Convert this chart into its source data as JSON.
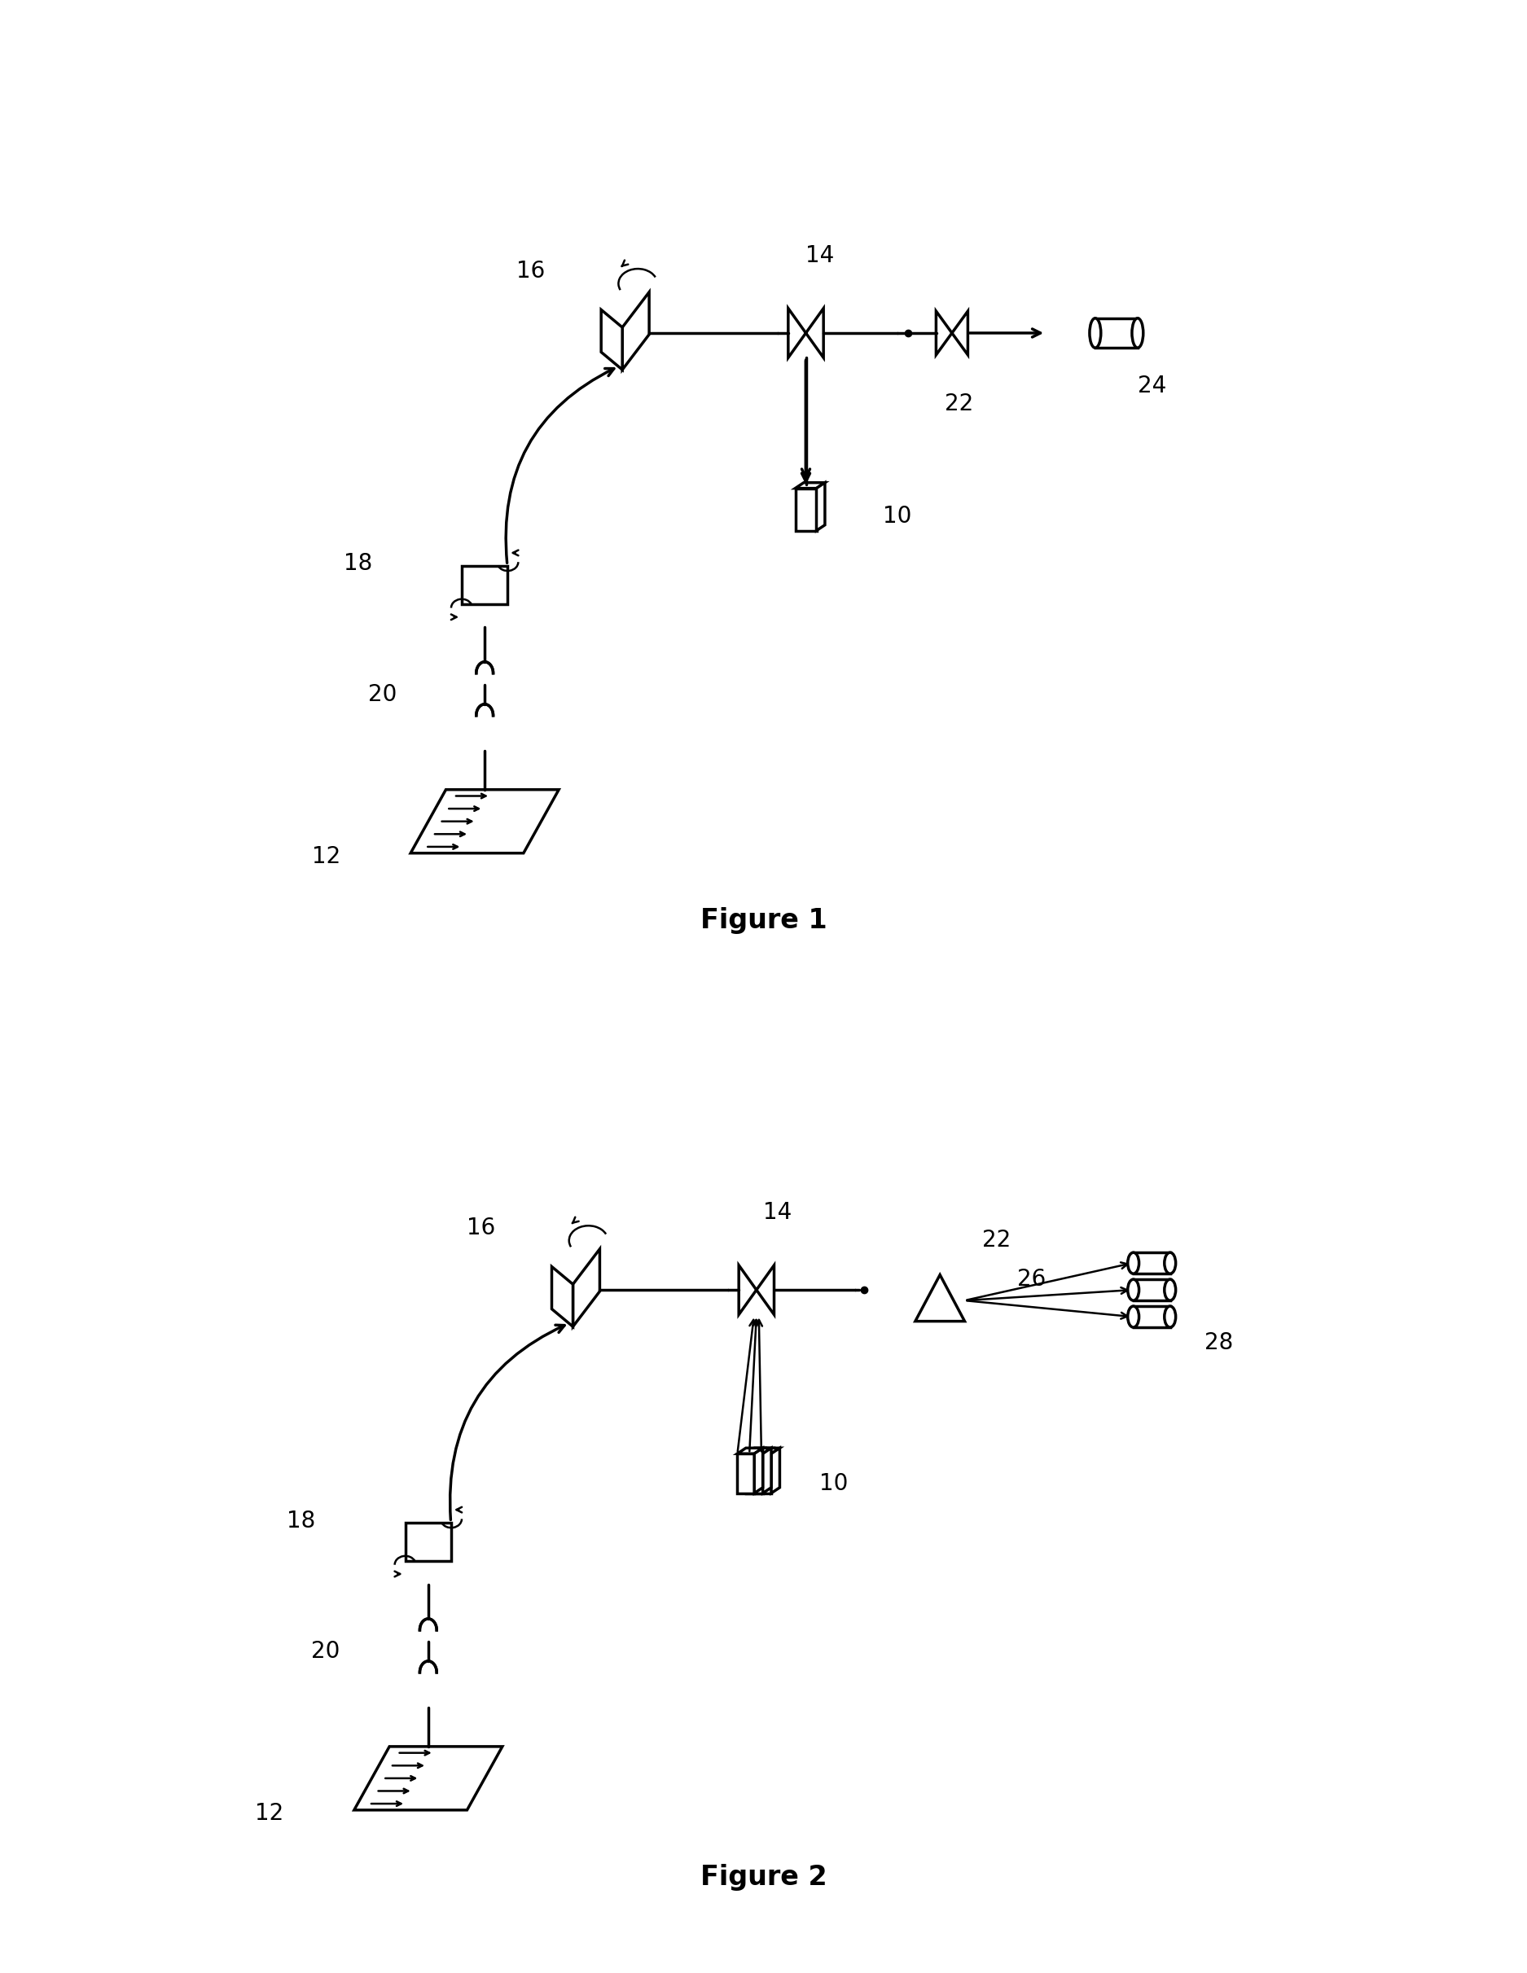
{
  "fig_width": 18.75,
  "fig_height": 24.23,
  "bg_color": "#ffffff",
  "line_color": "#000000",
  "lw": 2.5,
  "lw_thin": 1.8,
  "label_fontsize": 20,
  "fig_label_fontsize": 24,
  "figure1_label": "Figure 1",
  "figure2_label": "Figure 2"
}
